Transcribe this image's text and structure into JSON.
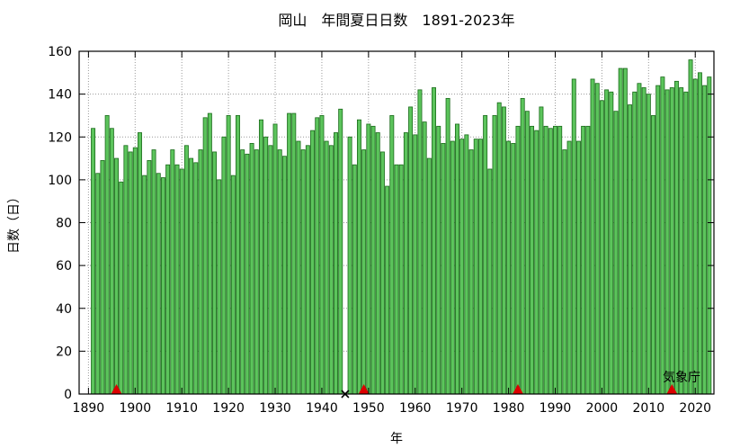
{
  "chart_data": {
    "type": "bar",
    "title": "岡山　年間夏日日数　1891-2023年",
    "xlabel": "年",
    "ylabel": "日数（日）",
    "credit": "気象庁",
    "x_start": 1891,
    "values": [
      124,
      103,
      109,
      130,
      124,
      110,
      99,
      116,
      113,
      115,
      122,
      102,
      109,
      114,
      103,
      101,
      107,
      114,
      107,
      105,
      116,
      110,
      108,
      114,
      129,
      131,
      113,
      100,
      120,
      130,
      102,
      130,
      114,
      112,
      117,
      114,
      128,
      120,
      116,
      126,
      114,
      111,
      131,
      131,
      118,
      114,
      116,
      123,
      129,
      130,
      118,
      116,
      122,
      133,
      0,
      120,
      107,
      128,
      114,
      126,
      125,
      122,
      113,
      97,
      130,
      107,
      107,
      122,
      134,
      121,
      142,
      127,
      110,
      143,
      125,
      117,
      138,
      118,
      126,
      119,
      121,
      114,
      119,
      119,
      130,
      105,
      130,
      136,
      134,
      118,
      117,
      125,
      138,
      132,
      125,
      123,
      134,
      125,
      124,
      125,
      125,
      114,
      118,
      147,
      118,
      125,
      125,
      147,
      145,
      137,
      142,
      141,
      132,
      152,
      152,
      135,
      141,
      145,
      143,
      140,
      130,
      144,
      148,
      142,
      143,
      146,
      143,
      141,
      156,
      147,
      150,
      144,
      148
    ],
    "xlim": [
      1888,
      2024
    ],
    "ylim": [
      0,
      160
    ],
    "xticks": [
      1890,
      1900,
      1910,
      1920,
      1930,
      1940,
      1950,
      1960,
      1970,
      1980,
      1990,
      2000,
      2010,
      2020
    ],
    "yticks": [
      0,
      20,
      40,
      60,
      80,
      100,
      120,
      140,
      160
    ],
    "grid": true,
    "bar_color": "#5cc45c",
    "bar_edge_color": "#1a6b1a",
    "markers": [
      {
        "kind": "triangle",
        "year": 1896,
        "color": "#dd0000"
      },
      {
        "kind": "triangle",
        "year": 1949,
        "color": "#dd0000"
      },
      {
        "kind": "triangle",
        "year": 1982,
        "color": "#dd0000"
      },
      {
        "kind": "triangle",
        "year": 2015,
        "color": "#dd0000"
      },
      {
        "kind": "cross",
        "year": 1945,
        "color": "#000000"
      }
    ]
  }
}
